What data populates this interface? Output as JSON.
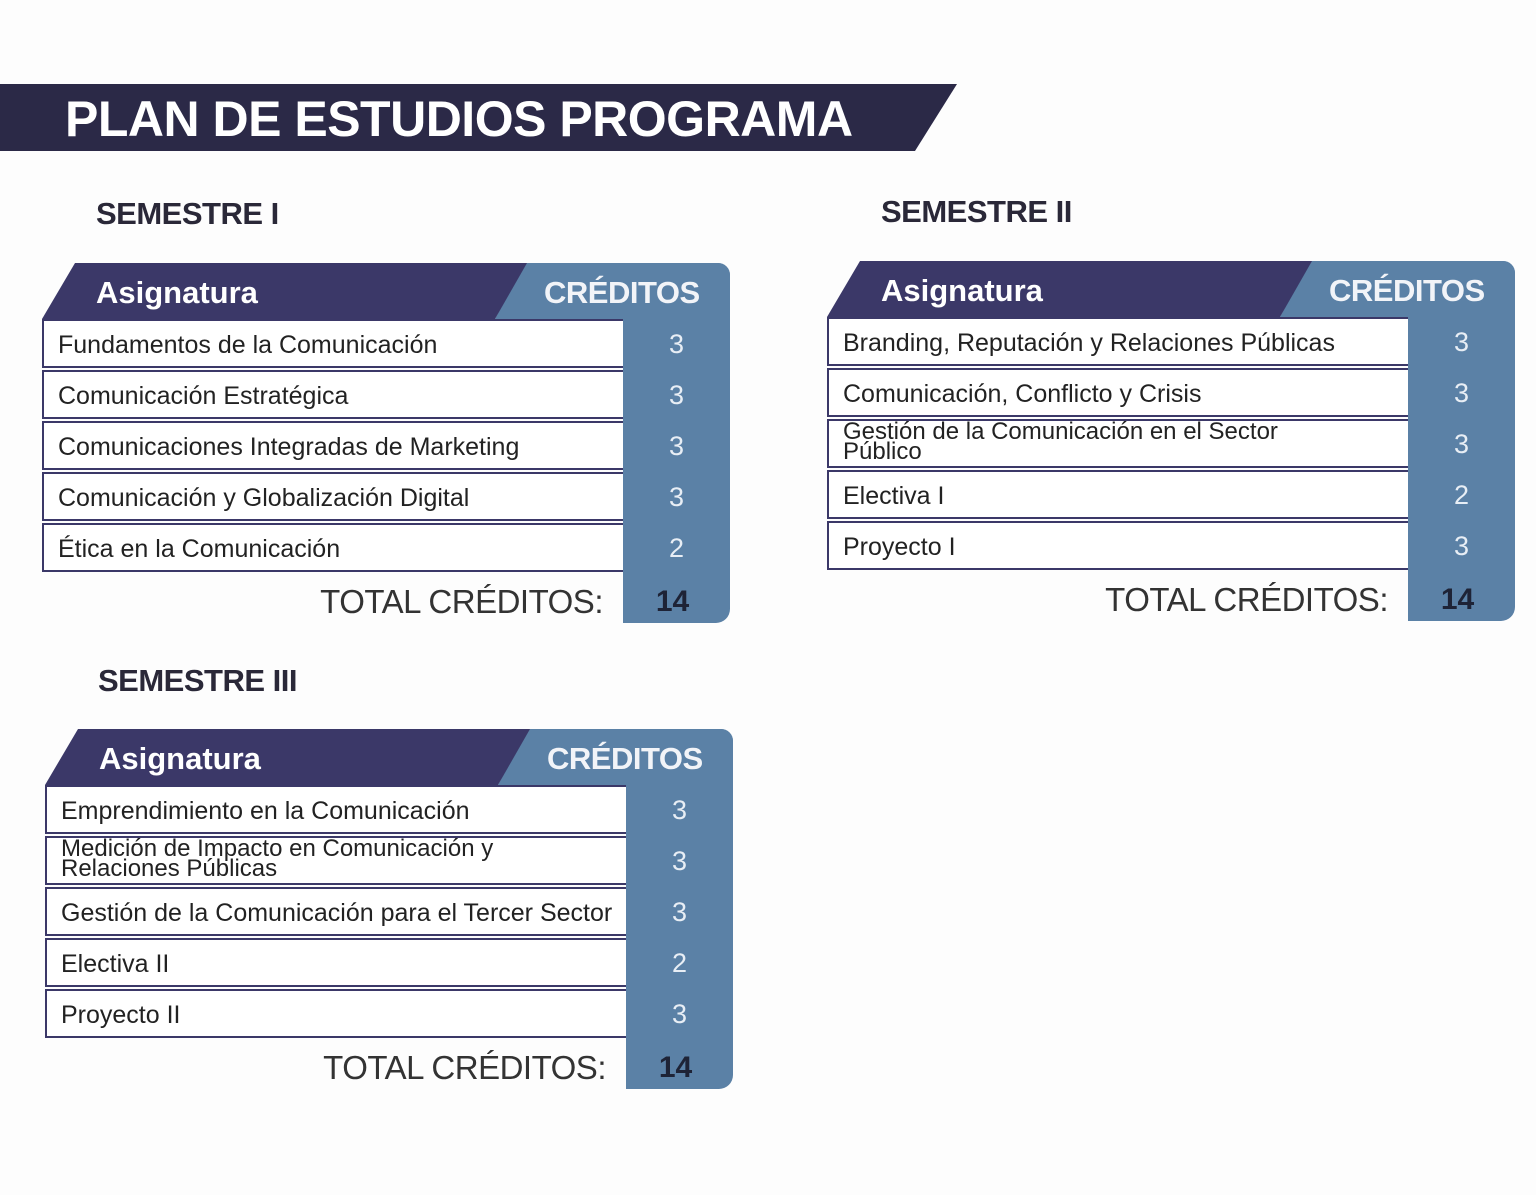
{
  "title": "PLAN DE ESTUDIOS PROGRAMA",
  "colors": {
    "banner": "#2b2947",
    "header_navy": "#3b3868",
    "credits_blue": "#5b81a6"
  },
  "semesters": [
    {
      "heading": "SEMESTRE I",
      "col_subject": "Asignatura",
      "col_credits": "CRÉDITOS",
      "rows": [
        {
          "subject": "Fundamentos de la Comunicación",
          "credits": "3"
        },
        {
          "subject": "Comunicación Estratégica",
          "credits": "3"
        },
        {
          "subject": "Comunicaciones Integradas de Marketing",
          "credits": "3"
        },
        {
          "subject": "Comunicación y Globalización Digital",
          "credits": "3"
        },
        {
          "subject": "Ética en la Comunicación",
          "credits": "2"
        }
      ],
      "total_label": "TOTAL CRÉDITOS:",
      "total": "14"
    },
    {
      "heading": "SEMESTRE II",
      "col_subject": "Asignatura",
      "col_credits": "CRÉDITOS",
      "rows": [
        {
          "subject": "Branding, Reputación y Relaciones Públicas",
          "credits": "3"
        },
        {
          "subject": "Comunicación, Conflicto y Crisis",
          "credits": "3"
        },
        {
          "subject": "Gestión de la Comunicación en el Sector Público",
          "credits": "3"
        },
        {
          "subject": "Electiva I",
          "credits": "2"
        },
        {
          "subject": "Proyecto I",
          "credits": "3"
        }
      ],
      "total_label": "TOTAL CRÉDITOS:",
      "total": "14"
    },
    {
      "heading": "SEMESTRE III",
      "col_subject": "Asignatura",
      "col_credits": "CRÉDITOS",
      "rows": [
        {
          "subject": "Emprendimiento en la Comunicación",
          "credits": "3"
        },
        {
          "subject": "Medición de Impacto en Comunicación y Relaciones Públicas",
          "credits": "3"
        },
        {
          "subject": "Gestión de la Comunicación para el Tercer Sector",
          "credits": "3"
        },
        {
          "subject": "Electiva II",
          "credits": "2"
        },
        {
          "subject": "Proyecto II",
          "credits": "3"
        }
      ],
      "total_label": "TOTAL CRÉDITOS:",
      "total": "14"
    }
  ]
}
